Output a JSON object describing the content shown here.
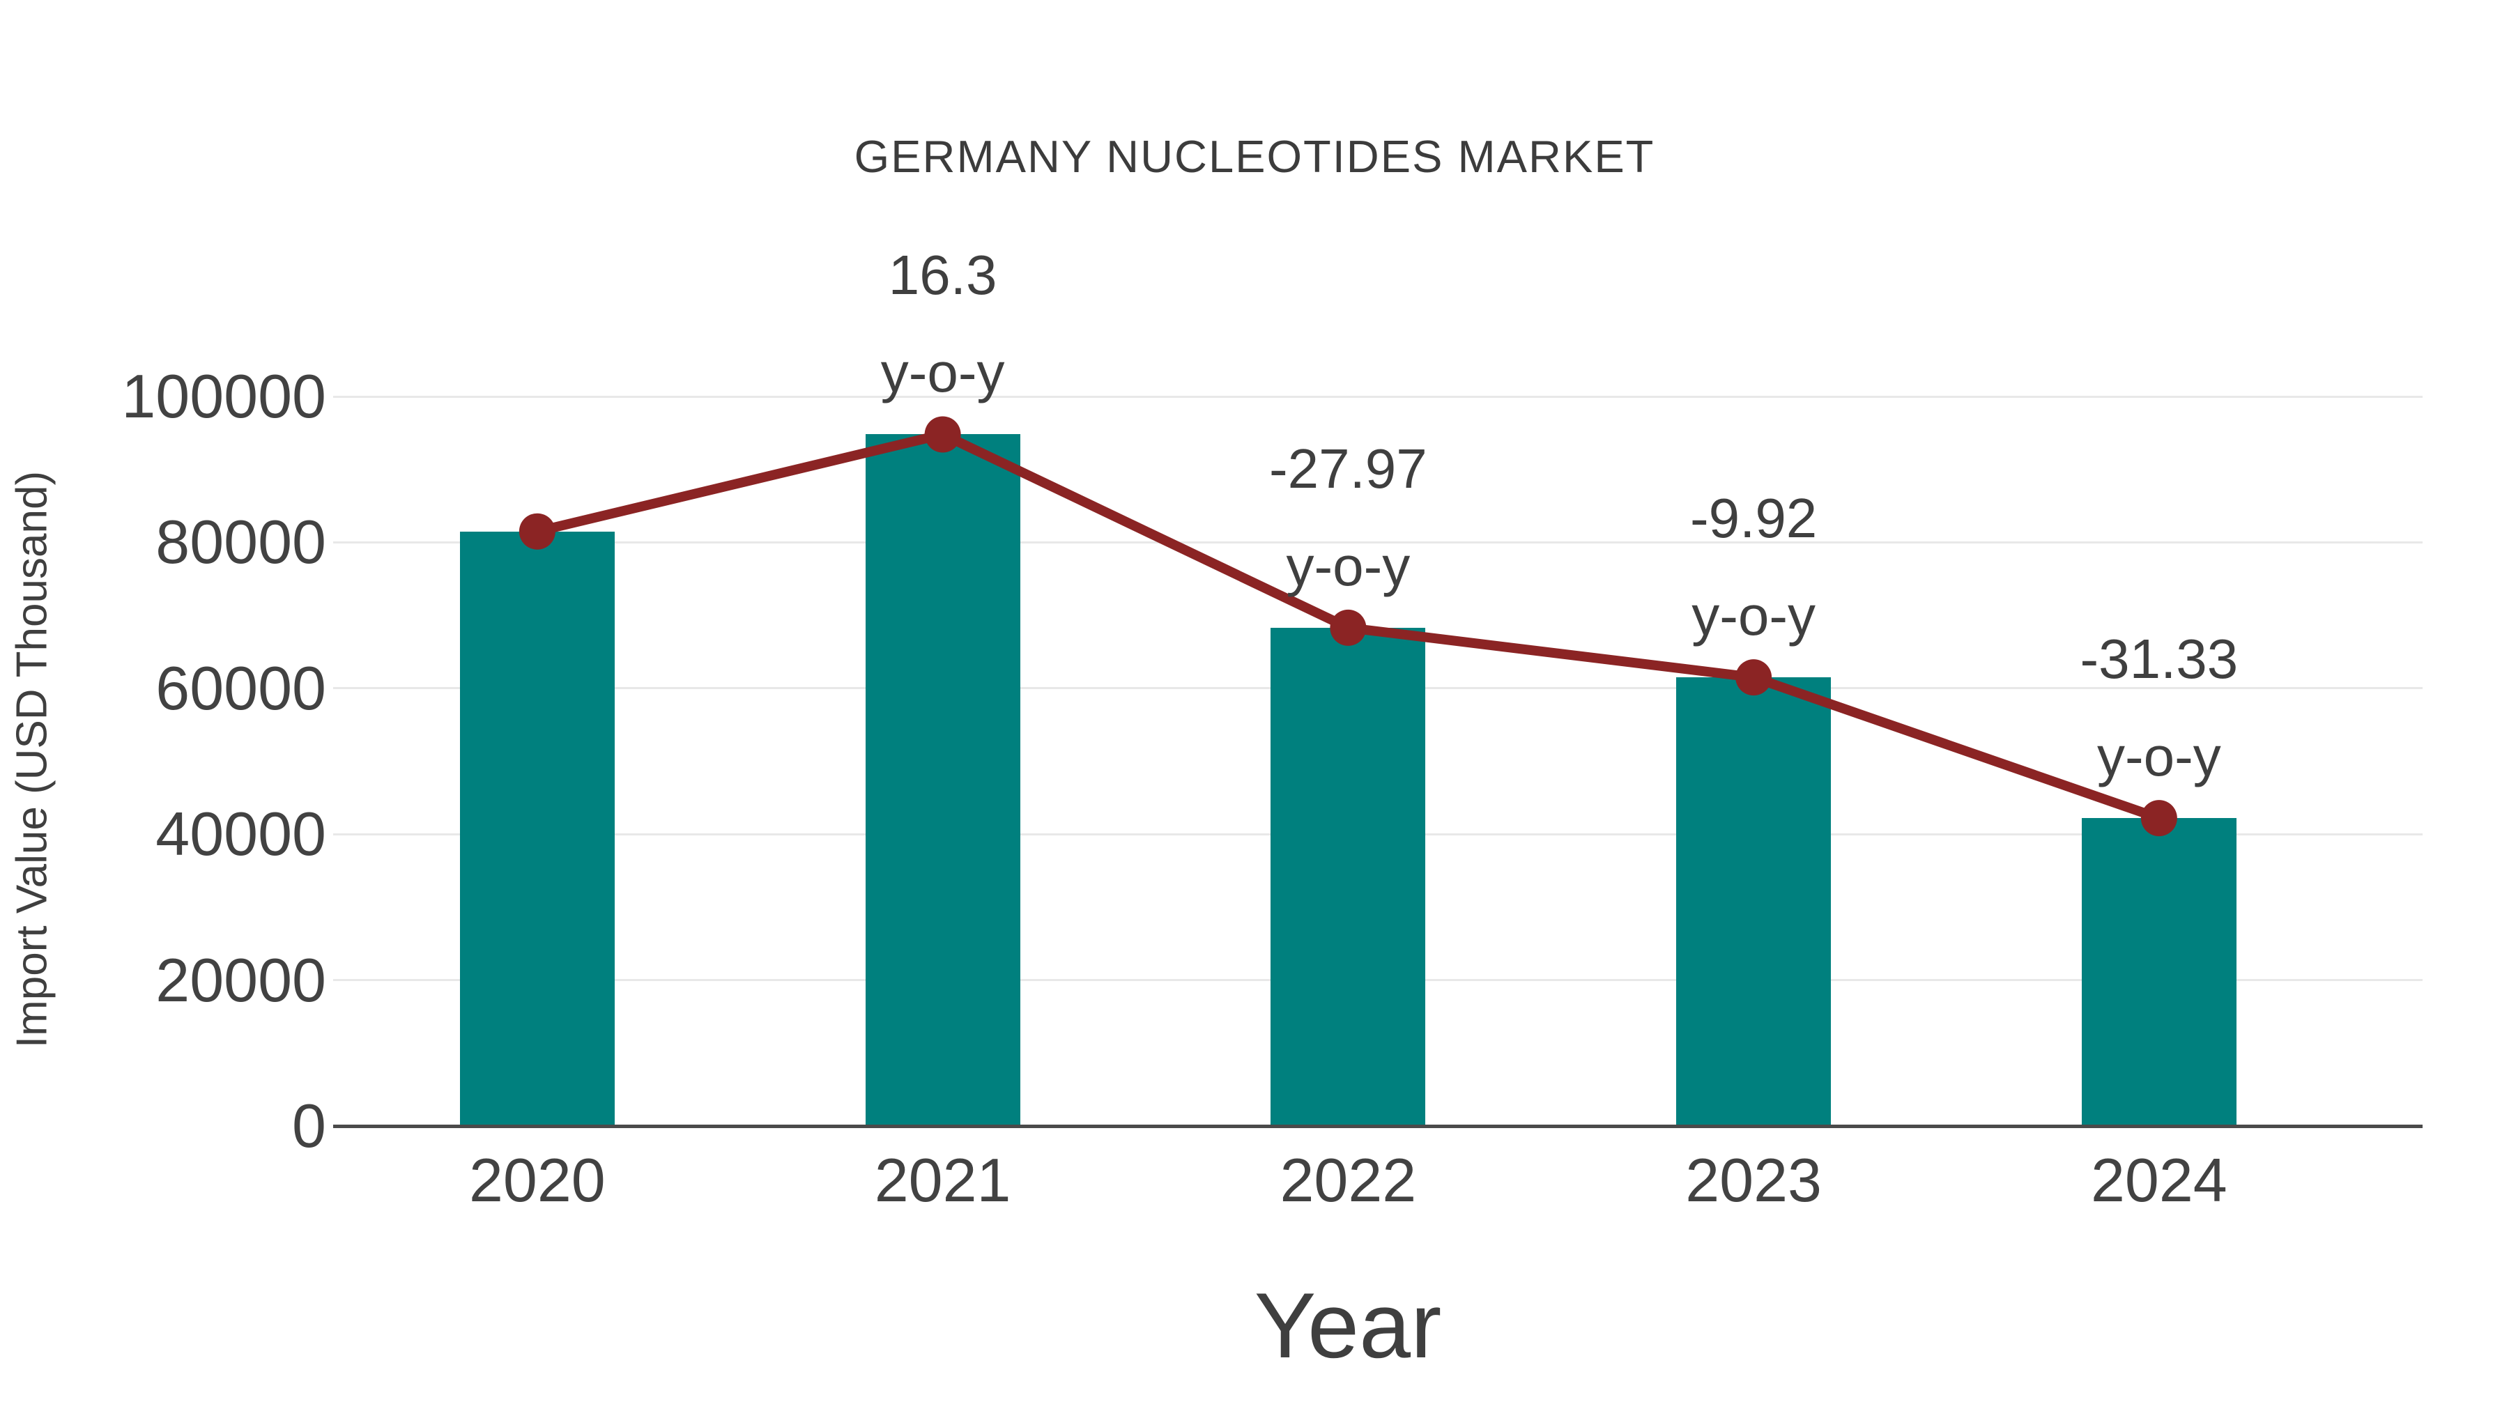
{
  "chart_data": {
    "type": "bar",
    "title": "GERMANY NUCLEOTIDES MARKET",
    "xlabel": "Year",
    "ylabel": "Import Value (USD Thousand)",
    "categories": [
      "2020",
      "2021",
      "2022",
      "2023",
      "2024"
    ],
    "series": [
      {
        "name": "Import Value (USD Thousand)",
        "type": "bar",
        "values": [
          81500,
          94800,
          68300,
          61500,
          42200
        ]
      },
      {
        "name": "y-o-y trend line",
        "type": "line",
        "values": [
          81500,
          94800,
          68300,
          61500,
          42200
        ]
      }
    ],
    "annotations": [
      {
        "category": "2021",
        "lines": [
          "16.3",
          "y-o-y"
        ]
      },
      {
        "category": "2022",
        "lines": [
          "-27.97",
          "y-o-y"
        ]
      },
      {
        "category": "2023",
        "lines": [
          "-9.92",
          "y-o-y"
        ]
      },
      {
        "category": "2024",
        "lines": [
          "-31.33",
          "y-o-y"
        ]
      }
    ],
    "yticks": [
      0,
      20000,
      40000,
      60000,
      80000,
      100000
    ],
    "ylim": [
      0,
      100000
    ],
    "grid": "horizontal",
    "legend": "none",
    "colors": {
      "bar": "#00807E",
      "line": "#8B2424",
      "text": "#424242",
      "grid": "#e8e8e8",
      "axis": "#4a4a4a"
    }
  }
}
